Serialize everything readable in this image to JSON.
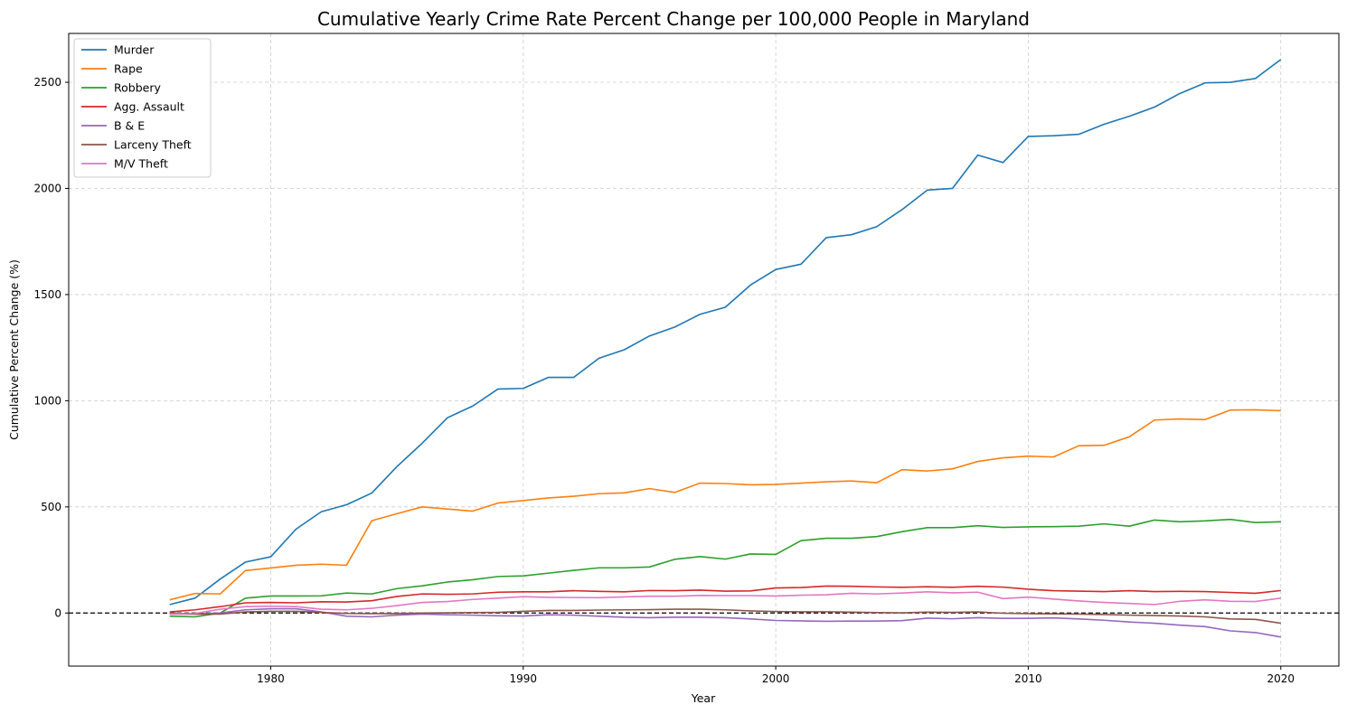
{
  "chart_data": {
    "type": "line",
    "title": "Cumulative Yearly Crime Rate Percent Change per 100,000 People in Maryland",
    "xlabel": "Year",
    "ylabel": "Cumulative Percent Change (%)",
    "xlim": [
      1972,
      2022.3
    ],
    "ylim": [
      -250,
      2730
    ],
    "xticks": [
      1980,
      1990,
      2000,
      2010,
      2020
    ],
    "yticks": [
      0,
      500,
      1000,
      1500,
      2000,
      2500
    ],
    "grid": true,
    "legend_position": "top-left",
    "reference_line": {
      "y": 0,
      "style": "dashed",
      "color": "#000000"
    },
    "x": [
      1976,
      1977,
      1978,
      1979,
      1980,
      1981,
      1982,
      1983,
      1984,
      1985,
      1986,
      1987,
      1988,
      1989,
      1990,
      1991,
      1992,
      1993,
      1994,
      1995,
      1996,
      1997,
      1998,
      1999,
      2000,
      2001,
      2002,
      2003,
      2004,
      2005,
      2006,
      2007,
      2008,
      2009,
      2010,
      2011,
      2012,
      2013,
      2014,
      2015,
      2016,
      2017,
      2018,
      2019,
      2020
    ],
    "series": [
      {
        "name": "Murder",
        "color": "#1f77b4",
        "values": [
          40,
          70,
          160,
          240,
          265,
          395,
          477,
          510,
          565,
          690,
          800,
          920,
          975,
          1055,
          1058,
          1110,
          1110,
          1200,
          1240,
          1305,
          1347,
          1407,
          1440,
          1545,
          1618,
          1643,
          1768,
          1782,
          1820,
          1900,
          1992,
          2000,
          2157,
          2122,
          2245,
          2248,
          2255,
          2302,
          2340,
          2383,
          2447,
          2497,
          2500,
          2518,
          2607
        ]
      },
      {
        "name": "Rape",
        "color": "#ff7f0e",
        "values": [
          62,
          92,
          90,
          200,
          212,
          225,
          230,
          225,
          435,
          468,
          500,
          490,
          480,
          518,
          530,
          542,
          550,
          562,
          566,
          586,
          568,
          612,
          610,
          604,
          606,
          612,
          618,
          622,
          614,
          675,
          669,
          679,
          714,
          731,
          739,
          735,
          788,
          790,
          830,
          909,
          914,
          911,
          956,
          957,
          953
        ]
      },
      {
        "name": "Robbery",
        "color": "#2ca02c",
        "values": [
          -15,
          -18,
          0,
          70,
          80,
          80,
          81,
          94,
          90,
          115,
          128,
          146,
          157,
          172,
          175,
          188,
          201,
          213,
          213,
          217,
          253,
          266,
          254,
          278,
          276,
          341,
          352,
          352,
          360,
          383,
          402,
          402,
          411,
          403,
          406,
          407,
          409,
          420,
          409,
          438,
          430,
          434,
          441,
          426,
          430
        ]
      },
      {
        "name": "Agg. Assault",
        "color": "#d62728",
        "values": [
          5,
          15,
          30,
          48,
          50,
          48,
          53,
          52,
          58,
          78,
          90,
          88,
          90,
          98,
          100,
          100,
          105,
          102,
          100,
          106,
          105,
          108,
          103,
          104,
          118,
          120,
          127,
          126,
          123,
          121,
          124,
          121,
          126,
          122,
          112,
          105,
          103,
          101,
          105,
          101,
          102,
          101,
          97,
          93,
          106
        ]
      },
      {
        "name": "B & E",
        "color": "#9467bd",
        "values": [
          -5,
          -5,
          0,
          15,
          20,
          20,
          5,
          -15,
          -18,
          -10,
          -5,
          -8,
          -10,
          -13,
          -14,
          -8,
          -10,
          -15,
          -20,
          -22,
          -20,
          -20,
          -22,
          -28,
          -35,
          -37,
          -39,
          -38,
          -38,
          -36,
          -24,
          -27,
          -22,
          -25,
          -25,
          -23,
          -28,
          -34,
          -42,
          -48,
          -57,
          -64,
          -84,
          -92,
          -113
        ]
      },
      {
        "name": "Larceny Theft",
        "color": "#8c564b",
        "values": [
          0,
          -5,
          -5,
          5,
          8,
          8,
          3,
          -2,
          -3,
          -3,
          0,
          1,
          2,
          3,
          8,
          12,
          12,
          14,
          15,
          16,
          18,
          18,
          15,
          10,
          7,
          6,
          6,
          4,
          2,
          1,
          4,
          3,
          5,
          -1,
          -3,
          -4,
          -5,
          -7,
          -10,
          -12,
          -14,
          -18,
          -28,
          -30,
          -48
        ]
      },
      {
        "name": "M/V Theft",
        "color": "#e377c2",
        "values": [
          -5,
          -2,
          18,
          30,
          32,
          30,
          18,
          15,
          22,
          35,
          50,
          54,
          64,
          70,
          77,
          74,
          73,
          72,
          76,
          79,
          79,
          83,
          82,
          82,
          80,
          84,
          86,
          93,
          90,
          94,
          100,
          95,
          98,
          68,
          75,
          66,
          57,
          50,
          45,
          40,
          55,
          62,
          55,
          54,
          70
        ]
      }
    ]
  }
}
